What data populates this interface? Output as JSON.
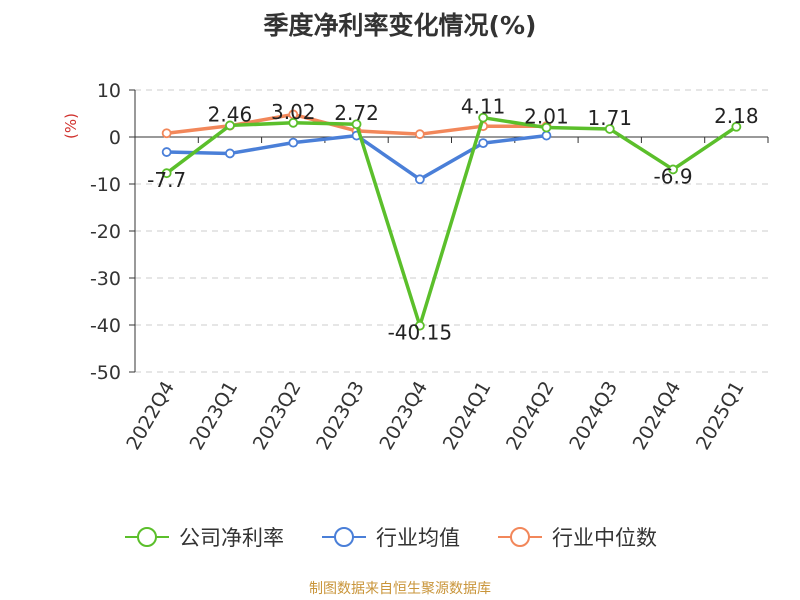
{
  "title": "季度净利率变化情况(%)",
  "source": "制图数据来自恒生聚源数据库",
  "chart_data": {
    "type": "line",
    "title": "季度净利率变化情况(%)",
    "ylabel": "(%)",
    "xlabel": "",
    "ylim": [
      -50,
      10
    ],
    "yticks": [
      10,
      0,
      -10,
      -20,
      -30,
      -40,
      -50
    ],
    "grid": true,
    "legend_position": "bottom",
    "categories": [
      "2022Q4",
      "2023Q1",
      "2023Q2",
      "2023Q3",
      "2023Q4",
      "2024Q1",
      "2024Q2",
      "2024Q3",
      "2024Q4",
      "2025Q1"
    ],
    "series": [
      {
        "name": "公司净利率",
        "color": "#5bbf2b",
        "values": [
          -7.7,
          2.46,
          3.02,
          2.72,
          -40.15,
          4.11,
          2.01,
          1.71,
          -6.9,
          2.18
        ],
        "labels": [
          "-7.7",
          "2.46",
          "3.02",
          "2.72",
          "-40.15",
          "4.11",
          "2.01",
          "1.71",
          "-6.9",
          "2.18"
        ]
      },
      {
        "name": "行业均值",
        "color": "#4a7fd8",
        "values": [
          -3.2,
          -3.5,
          -1.2,
          0.3,
          -9.0,
          -1.3,
          0.3,
          null,
          null,
          null
        ]
      },
      {
        "name": "行业中位数",
        "color": "#f2875a",
        "values": [
          0.8,
          2.4,
          4.8,
          1.3,
          0.6,
          2.3,
          2.3,
          null,
          null,
          null
        ]
      }
    ]
  }
}
